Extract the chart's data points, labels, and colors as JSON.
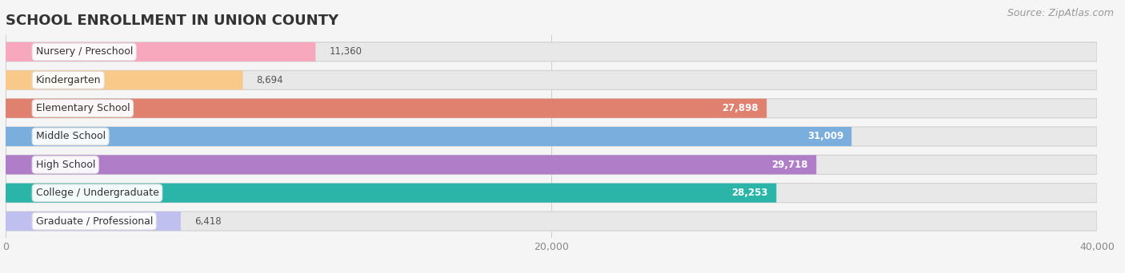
{
  "title": "SCHOOL ENROLLMENT IN UNION COUNTY",
  "source": "Source: ZipAtlas.com",
  "categories": [
    "Nursery / Preschool",
    "Kindergarten",
    "Elementary School",
    "Middle School",
    "High School",
    "College / Undergraduate",
    "Graduate / Professional"
  ],
  "values": [
    11360,
    8694,
    27898,
    31009,
    29718,
    28253,
    6418
  ],
  "bar_colors": [
    "#f7a8bc",
    "#f9c98a",
    "#e0806e",
    "#7aaedc",
    "#b07ec8",
    "#2ab5a8",
    "#c0c0f0"
  ],
  "label_circle_colors": [
    "#f06080",
    "#f0a040",
    "#d05040",
    "#4080c0",
    "#8040a0",
    "#108878",
    "#9898d8"
  ],
  "xlim": [
    0,
    40000
  ],
  "xticks": [
    0,
    20000,
    40000
  ],
  "xticklabels": [
    "0",
    "20,000",
    "40,000"
  ],
  "title_fontsize": 13,
  "source_fontsize": 9,
  "label_fontsize": 9,
  "value_fontsize": 8.5,
  "background_color": "#f5f5f5",
  "bar_bg_color": "#e8e8e8",
  "bar_bg_edge_color": "#d0d0d0",
  "value_inside_threshold": 12000
}
